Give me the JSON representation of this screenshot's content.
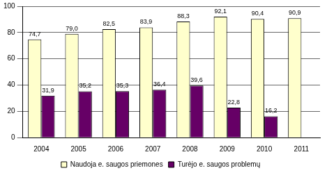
{
  "chart_data": {
    "type": "bar",
    "categories": [
      "2004",
      "2005",
      "2006",
      "2007",
      "2008",
      "2009",
      "2010",
      "2011"
    ],
    "series": [
      {
        "name": "Naudoja e. saugos priemones",
        "color": "#ffffcc",
        "values": [
          74.7,
          79.0,
          82.5,
          83.9,
          88.3,
          92.1,
          90.4,
          90.9
        ],
        "value_labels": [
          "74,7",
          "79,0",
          "82,5",
          "83,9",
          "88,3",
          "92,1",
          "90,4",
          "90,9"
        ]
      },
      {
        "name": "Turėjo e. saugos problemų",
        "color": "#660066",
        "values": [
          31.9,
          35.2,
          35.3,
          36.4,
          39.6,
          22.8,
          16.2,
          null
        ],
        "value_labels": [
          "31,9",
          "35,2",
          "35,3",
          "36,4",
          "39,6",
          "22,8",
          "16,2",
          null
        ]
      }
    ],
    "ylim": [
      0,
      100
    ],
    "yticks": [
      0,
      20,
      40,
      60,
      80,
      100
    ],
    "grid": true,
    "legend": "bottom",
    "data_labels": true
  }
}
